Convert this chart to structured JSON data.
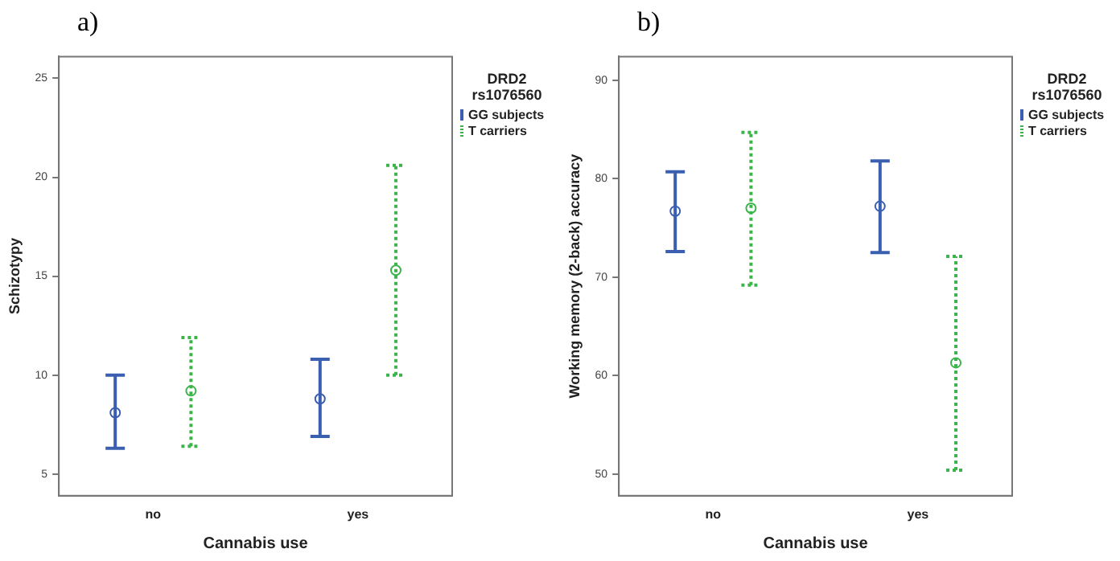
{
  "chart_data": [
    {
      "type": "scatter",
      "title": "a)",
      "xlabel": "Cannabis use",
      "ylabel": "Schizotypy",
      "legend_title": "DRD2 rs1076560",
      "categories": [
        "no",
        "yes"
      ],
      "ylim": [
        3.9,
        26.1
      ],
      "yticks": [
        5,
        10,
        15,
        20,
        25
      ],
      "grid": false,
      "legend": "top right",
      "marker": "circle",
      "series": [
        {
          "name": "GG subjects",
          "color": "#3a5fb0",
          "line_style": "solid",
          "values": [
            8.1,
            8.8
          ],
          "errors": [
            [
              6.3,
              10.0
            ],
            [
              6.9,
              10.8
            ]
          ]
        },
        {
          "name": "T carriers",
          "color": "#3cb44b",
          "line_style": "dotted",
          "values": [
            9.2,
            15.3
          ],
          "errors": [
            [
              6.4,
              11.9
            ],
            [
              10.0,
              20.6
            ]
          ]
        }
      ]
    },
    {
      "type": "scatter",
      "title": "b)",
      "xlabel": "Cannabis use",
      "ylabel": "Working memory (2-back) accuracy",
      "legend_title": "DRD2 rs1076560",
      "categories": [
        "no",
        "yes"
      ],
      "ylim": [
        47.8,
        92.4
      ],
      "yticks": [
        50,
        60,
        70,
        80,
        90
      ],
      "grid": false,
      "legend": "top right",
      "marker": "circle",
      "series": [
        {
          "name": "GG subjects",
          "color": "#3a5fb0",
          "line_style": "solid",
          "values": [
            76.7,
            77.2
          ],
          "errors": [
            [
              72.6,
              80.7
            ],
            [
              72.5,
              81.8
            ]
          ]
        },
        {
          "name": "T carriers",
          "color": "#3cb44b",
          "line_style": "dotted",
          "values": [
            77.0,
            61.3
          ],
          "errors": [
            [
              69.2,
              84.7
            ],
            [
              50.4,
              72.1
            ]
          ]
        }
      ]
    }
  ]
}
